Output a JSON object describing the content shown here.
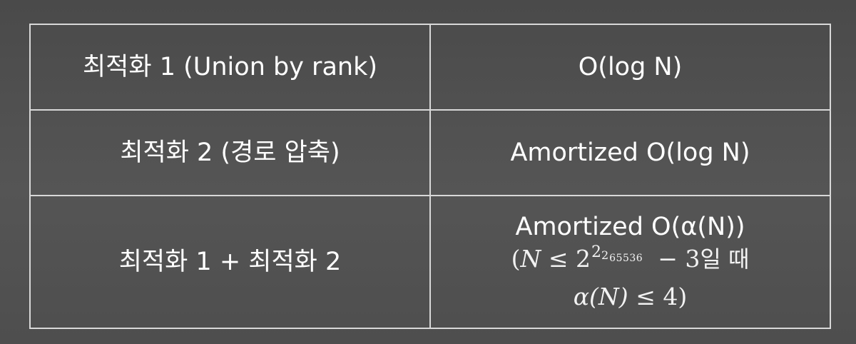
{
  "table": {
    "rows": [
      {
        "method": "최적화 1 (Union by rank)",
        "complexity": "O(log N)"
      },
      {
        "method": "최적화 2 (경로 압축)",
        "complexity": "Amortized O(log N)"
      },
      {
        "method": "최적화 1 + 최적화 2",
        "complexity": "Amortized O(α(N))",
        "note": {
          "open_paren": "(",
          "var_n": "N",
          "leq": "≤",
          "base": "2",
          "exp1": "2",
          "exp2": "2",
          "exp3": "65536",
          "minus": "−",
          "three": "3",
          "when": "일 때",
          "alpha_expr": "α(N)",
          "leq2": "≤",
          "four": "4)"
        }
      }
    ]
  }
}
